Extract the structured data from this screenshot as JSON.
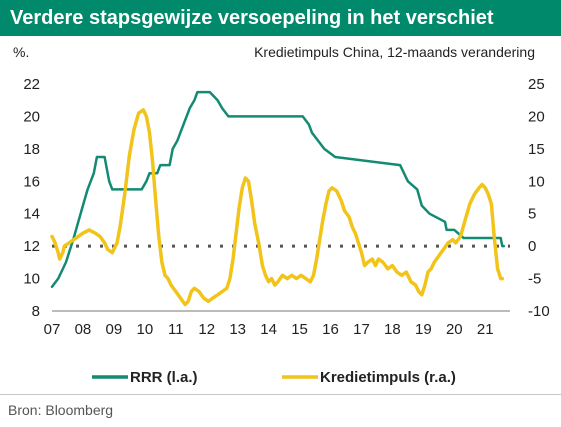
{
  "title": "Verdere stapsgewijze versoepeling in het verschiet",
  "colors": {
    "banner": "#00896b",
    "rrr": "#138a72",
    "krediet": "#f2c41a",
    "zero": "#555555",
    "baseline": "#777777"
  },
  "chart_data": {
    "type": "line",
    "subtitle": "Kredietimpuls China, 12-maands verandering",
    "ylabel_left": "%.",
    "left_ticks": [
      "22",
      "20",
      "18",
      "16",
      "14",
      "12",
      "10",
      "8"
    ],
    "right_ticks": [
      "25",
      "20",
      "15",
      "10",
      "5",
      "0",
      "-5",
      "-10"
    ],
    "x_ticks": [
      "07",
      "08",
      "09",
      "10",
      "11",
      "12",
      "13",
      "14",
      "15",
      "16",
      "17",
      "18",
      "19",
      "20",
      "21"
    ],
    "ylim_left": [
      8,
      22
    ],
    "ylim_right": [
      -10,
      25
    ],
    "xlim": [
      2007.0,
      2021.8
    ],
    "legend_position": "bottom",
    "series": [
      {
        "name": "RRR (l.a.)",
        "axis": "left",
        "points": [
          [
            2007.0,
            9.5
          ],
          [
            2007.2,
            10.0
          ],
          [
            2007.45,
            11.0
          ],
          [
            2007.7,
            12.5
          ],
          [
            2007.85,
            13.5
          ],
          [
            2008.0,
            14.5
          ],
          [
            2008.15,
            15.5
          ],
          [
            2008.35,
            16.5
          ],
          [
            2008.45,
            17.5
          ],
          [
            2008.7,
            17.5
          ],
          [
            2008.85,
            16.0
          ],
          [
            2008.95,
            15.5
          ],
          [
            2009.0,
            15.5
          ],
          [
            2009.9,
            15.5
          ],
          [
            2010.05,
            16.0
          ],
          [
            2010.15,
            16.5
          ],
          [
            2010.4,
            16.5
          ],
          [
            2010.5,
            17.0
          ],
          [
            2010.8,
            17.0
          ],
          [
            2010.9,
            18.0
          ],
          [
            2011.05,
            18.5
          ],
          [
            2011.15,
            19.0
          ],
          [
            2011.25,
            19.5
          ],
          [
            2011.35,
            20.0
          ],
          [
            2011.45,
            20.5
          ],
          [
            2011.6,
            21.0
          ],
          [
            2011.7,
            21.5
          ],
          [
            2012.1,
            21.5
          ],
          [
            2012.35,
            21.0
          ],
          [
            2012.5,
            20.5
          ],
          [
            2012.7,
            20.0
          ],
          [
            2015.1,
            20.0
          ],
          [
            2015.3,
            19.5
          ],
          [
            2015.4,
            19.0
          ],
          [
            2015.6,
            18.5
          ],
          [
            2015.8,
            18.0
          ],
          [
            2016.15,
            17.5
          ],
          [
            2018.25,
            17.0
          ],
          [
            2018.5,
            16.0
          ],
          [
            2018.8,
            15.5
          ],
          [
            2018.95,
            14.5
          ],
          [
            2019.2,
            14.0
          ],
          [
            2019.7,
            13.5
          ],
          [
            2019.75,
            13.0
          ],
          [
            2020.0,
            13.0
          ],
          [
            2020.3,
            12.5
          ],
          [
            2021.5,
            12.5
          ],
          [
            2021.55,
            12.0
          ],
          [
            2021.6,
            12.0
          ]
        ]
      },
      {
        "name": "Kredietimpuls (r.a.)",
        "axis": "right",
        "points": [
          [
            2007.0,
            1.5
          ],
          [
            2007.1,
            0.5
          ],
          [
            2007.2,
            -1.0
          ],
          [
            2007.25,
            -2.0
          ],
          [
            2007.35,
            -1.0
          ],
          [
            2007.4,
            0.0
          ],
          [
            2007.55,
            0.5
          ],
          [
            2007.7,
            1.0
          ],
          [
            2007.85,
            1.5
          ],
          [
            2008.0,
            2.0
          ],
          [
            2008.2,
            2.5
          ],
          [
            2008.4,
            2.0
          ],
          [
            2008.55,
            1.5
          ],
          [
            2008.7,
            0.5
          ],
          [
            2008.8,
            -0.5
          ],
          [
            2008.95,
            -1.0
          ],
          [
            2009.1,
            0.5
          ],
          [
            2009.2,
            3.0
          ],
          [
            2009.35,
            8.0
          ],
          [
            2009.5,
            14.0
          ],
          [
            2009.65,
            18.0
          ],
          [
            2009.8,
            20.5
          ],
          [
            2009.95,
            21.0
          ],
          [
            2010.05,
            20.0
          ],
          [
            2010.15,
            17.5
          ],
          [
            2010.25,
            13.0
          ],
          [
            2010.35,
            7.0
          ],
          [
            2010.45,
            1.5
          ],
          [
            2010.55,
            -2.5
          ],
          [
            2010.65,
            -4.5
          ],
          [
            2010.75,
            -5.0
          ],
          [
            2010.85,
            -6.0
          ],
          [
            2011.0,
            -7.0
          ],
          [
            2011.15,
            -8.0
          ],
          [
            2011.3,
            -9.0
          ],
          [
            2011.4,
            -8.5
          ],
          [
            2011.5,
            -7.0
          ],
          [
            2011.6,
            -6.5
          ],
          [
            2011.75,
            -7.0
          ],
          [
            2011.9,
            -8.0
          ],
          [
            2012.05,
            -8.5
          ],
          [
            2012.2,
            -8.0
          ],
          [
            2012.35,
            -7.5
          ],
          [
            2012.5,
            -7.0
          ],
          [
            2012.65,
            -6.5
          ],
          [
            2012.75,
            -5.0
          ],
          [
            2012.85,
            -2.0
          ],
          [
            2012.95,
            2.0
          ],
          [
            2013.05,
            6.0
          ],
          [
            2013.15,
            9.0
          ],
          [
            2013.25,
            10.5
          ],
          [
            2013.35,
            10.0
          ],
          [
            2013.45,
            7.0
          ],
          [
            2013.55,
            3.5
          ],
          [
            2013.7,
            0.0
          ],
          [
            2013.8,
            -3.0
          ],
          [
            2013.9,
            -4.5
          ],
          [
            2014.0,
            -5.5
          ],
          [
            2014.1,
            -5.0
          ],
          [
            2014.2,
            -6.0
          ],
          [
            2014.3,
            -5.5
          ],
          [
            2014.45,
            -4.5
          ],
          [
            2014.6,
            -5.0
          ],
          [
            2014.75,
            -4.5
          ],
          [
            2014.9,
            -5.0
          ],
          [
            2015.05,
            -4.5
          ],
          [
            2015.2,
            -5.0
          ],
          [
            2015.35,
            -5.5
          ],
          [
            2015.45,
            -4.5
          ],
          [
            2015.55,
            -2.0
          ],
          [
            2015.65,
            1.0
          ],
          [
            2015.75,
            4.0
          ],
          [
            2015.85,
            6.5
          ],
          [
            2015.95,
            8.5
          ],
          [
            2016.05,
            9.0
          ],
          [
            2016.2,
            8.5
          ],
          [
            2016.35,
            7.0
          ],
          [
            2016.45,
            5.5
          ],
          [
            2016.6,
            4.5
          ],
          [
            2016.7,
            3.0
          ],
          [
            2016.8,
            2.0
          ],
          [
            2016.9,
            0.5
          ],
          [
            2017.0,
            -1.0
          ],
          [
            2017.1,
            -3.0
          ],
          [
            2017.2,
            -2.5
          ],
          [
            2017.35,
            -2.0
          ],
          [
            2017.45,
            -3.0
          ],
          [
            2017.55,
            -2.0
          ],
          [
            2017.7,
            -2.5
          ],
          [
            2017.85,
            -3.5
          ],
          [
            2018.0,
            -3.0
          ],
          [
            2018.15,
            -4.0
          ],
          [
            2018.3,
            -4.5
          ],
          [
            2018.45,
            -4.0
          ],
          [
            2018.6,
            -5.5
          ],
          [
            2018.75,
            -6.0
          ],
          [
            2018.85,
            -7.0
          ],
          [
            2018.95,
            -7.5
          ],
          [
            2019.05,
            -6.0
          ],
          [
            2019.15,
            -4.0
          ],
          [
            2019.25,
            -3.5
          ],
          [
            2019.35,
            -2.5
          ],
          [
            2019.5,
            -1.5
          ],
          [
            2019.65,
            -0.5
          ],
          [
            2019.8,
            0.5
          ],
          [
            2019.95,
            1.0
          ],
          [
            2020.05,
            0.5
          ],
          [
            2020.2,
            1.5
          ],
          [
            2020.35,
            4.0
          ],
          [
            2020.5,
            6.5
          ],
          [
            2020.65,
            8.0
          ],
          [
            2020.8,
            9.0
          ],
          [
            2020.9,
            9.5
          ],
          [
            2021.0,
            9.0
          ],
          [
            2021.1,
            8.0
          ],
          [
            2021.2,
            6.5
          ],
          [
            2021.3,
            1.0
          ],
          [
            2021.4,
            -3.5
          ],
          [
            2021.5,
            -5.0
          ],
          [
            2021.55,
            -5.0
          ]
        ]
      }
    ]
  },
  "source": "Bron: Bloomberg"
}
